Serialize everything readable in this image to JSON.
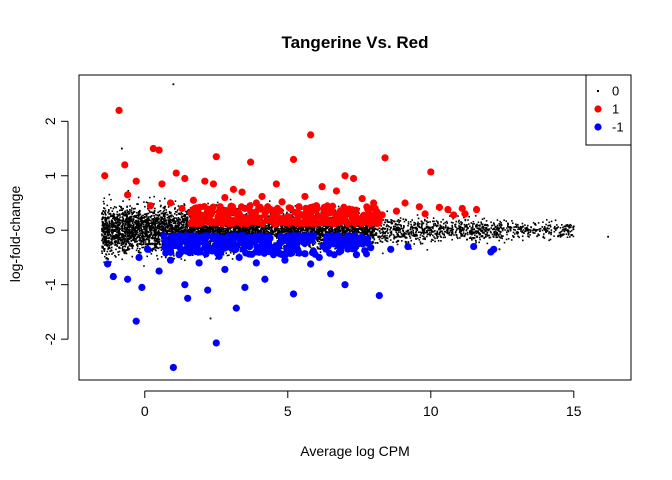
{
  "chart_data": {
    "type": "scatter",
    "title": "Tangerine Vs. Red",
    "xlabel": "Average log CPM",
    "ylabel": "log-fold-change",
    "xlim": [
      -2.3,
      17
    ],
    "ylim": [
      -2.75,
      2.85
    ],
    "xticks": [
      0,
      5,
      10,
      15
    ],
    "yticks": [
      -2,
      -1,
      0,
      1,
      2
    ],
    "xtick_labels": [
      "0",
      "5",
      "10",
      "15"
    ],
    "ytick_labels": [
      "-2",
      "-1",
      "0",
      "1",
      "2"
    ],
    "grid": false,
    "legend_position": "top-right",
    "colors": {
      "0": "#000000",
      "1": "#ff0000",
      "-1": "#0000ff"
    },
    "series": [
      {
        "name": "0",
        "color": "#000000",
        "marker": "small-dot",
        "distribution": "dense band of non-differential genes centered on 0, spread roughly ±0.4 at low CPM narrowing toward high CPM",
        "x_range": [
          -1.6,
          16.3
        ],
        "approx_count": 7000,
        "notable_points": [
          [
            1,
            2.68
          ],
          [
            -0.8,
            1.5
          ],
          [
            2.3,
            -1.62
          ],
          [
            16.2,
            -0.12
          ],
          [
            15,
            0.07
          ],
          [
            12.4,
            -0.35
          ]
        ]
      },
      {
        "name": "1",
        "color": "#ff0000",
        "marker": "filled-circle",
        "points": [
          [
            -0.9,
            2.2
          ],
          [
            0.3,
            1.5
          ],
          [
            0.5,
            1.47
          ],
          [
            -0.7,
            1.2
          ],
          [
            -1.4,
            1.0
          ],
          [
            -0.3,
            0.9
          ],
          [
            0.6,
            0.85
          ],
          [
            1.1,
            1.05
          ],
          [
            1.4,
            0.95
          ],
          [
            2.5,
            1.35
          ],
          [
            2.1,
            0.9
          ],
          [
            2.4,
            0.85
          ],
          [
            3.7,
            1.25
          ],
          [
            5.8,
            1.75
          ],
          [
            5.2,
            1.3
          ],
          [
            8.4,
            1.33
          ],
          [
            10,
            1.07
          ],
          [
            3.1,
            0.75
          ],
          [
            3.4,
            0.7
          ],
          [
            4.6,
            0.85
          ],
          [
            7,
            1.0
          ],
          [
            7.3,
            0.95
          ],
          [
            6.2,
            0.8
          ],
          [
            4.1,
            0.62
          ],
          [
            5.6,
            0.62
          ],
          [
            6.7,
            0.72
          ],
          [
            7.6,
            0.58
          ],
          [
            8,
            0.5
          ],
          [
            9.1,
            0.5
          ],
          [
            9.6,
            0.43
          ],
          [
            10.3,
            0.42
          ],
          [
            10.6,
            0.38
          ],
          [
            11.1,
            0.4
          ],
          [
            11.6,
            0.38
          ],
          [
            11.2,
            0.3
          ],
          [
            10.8,
            0.28
          ],
          [
            9.8,
            0.3
          ],
          [
            8.8,
            0.35
          ],
          [
            2.8,
            0.6
          ],
          [
            1.7,
            0.55
          ],
          [
            0.9,
            0.5
          ],
          [
            -0.6,
            0.65
          ],
          [
            1.3,
            0.4
          ],
          [
            2.2,
            0.35
          ],
          [
            3.5,
            0.4
          ],
          [
            4.4,
            0.38
          ],
          [
            5.1,
            0.4
          ],
          [
            6,
            0.45
          ],
          [
            7.8,
            0.38
          ],
          [
            3.9,
            0.5
          ],
          [
            4.8,
            0.52
          ],
          [
            5.4,
            0.3
          ],
          [
            6.4,
            0.32
          ],
          [
            7.2,
            0.3
          ],
          [
            8.3,
            0.28
          ],
          [
            2.6,
            0.25
          ],
          [
            3.2,
            0.3
          ],
          [
            4.2,
            0.28
          ],
          [
            5.9,
            0.22
          ],
          [
            6.9,
            0.25
          ],
          [
            1.8,
            0.28
          ],
          [
            0.2,
            0.45
          ]
        ],
        "band": {
          "x_range": [
            1.6,
            8.2
          ],
          "y_range": [
            0.12,
            0.45
          ],
          "approx_count": 260
        }
      },
      {
        "name": "-1",
        "color": "#0000ff",
        "marker": "filled-circle",
        "points": [
          [
            1,
            -2.52
          ],
          [
            2.5,
            -2.07
          ],
          [
            -0.3,
            -1.67
          ],
          [
            3.2,
            -1.43
          ],
          [
            1.5,
            -1.25
          ],
          [
            5.2,
            -1.17
          ],
          [
            8.2,
            -1.2
          ],
          [
            7,
            -1.0
          ],
          [
            2.2,
            -1.1
          ],
          [
            3.5,
            -1.05
          ],
          [
            -0.1,
            -1.05
          ],
          [
            -0.6,
            -0.9
          ],
          [
            -1.1,
            -0.85
          ],
          [
            1.4,
            -1.0
          ],
          [
            4.2,
            -0.9
          ],
          [
            6.5,
            -0.8
          ],
          [
            0.5,
            -0.75
          ],
          [
            2.8,
            -0.72
          ],
          [
            5.8,
            -0.62
          ],
          [
            -1.3,
            -0.62
          ],
          [
            0.9,
            -0.55
          ],
          [
            1.9,
            -0.6
          ],
          [
            3.9,
            -0.6
          ],
          [
            4.9,
            -0.55
          ],
          [
            6.1,
            -0.5
          ],
          [
            7.4,
            -0.45
          ],
          [
            9.2,
            -0.3
          ],
          [
            11.5,
            -0.3
          ],
          [
            12.2,
            -0.35
          ],
          [
            12.1,
            -0.4
          ],
          [
            8.6,
            -0.35
          ],
          [
            7.9,
            -0.32
          ],
          [
            -0.2,
            -0.5
          ],
          [
            1.2,
            -0.45
          ],
          [
            2.6,
            -0.48
          ],
          [
            3.3,
            -0.5
          ],
          [
            5.4,
            -0.42
          ],
          [
            6.8,
            -0.4
          ],
          [
            4.5,
            -0.45
          ],
          [
            0.1,
            -0.35
          ],
          [
            1.6,
            -0.35
          ],
          [
            2.1,
            -0.32
          ]
        ],
        "band": {
          "x_range": [
            0.6,
            7.8
          ],
          "y_range": [
            -0.45,
            -0.1
          ],
          "approx_count": 300
        }
      }
    ]
  }
}
